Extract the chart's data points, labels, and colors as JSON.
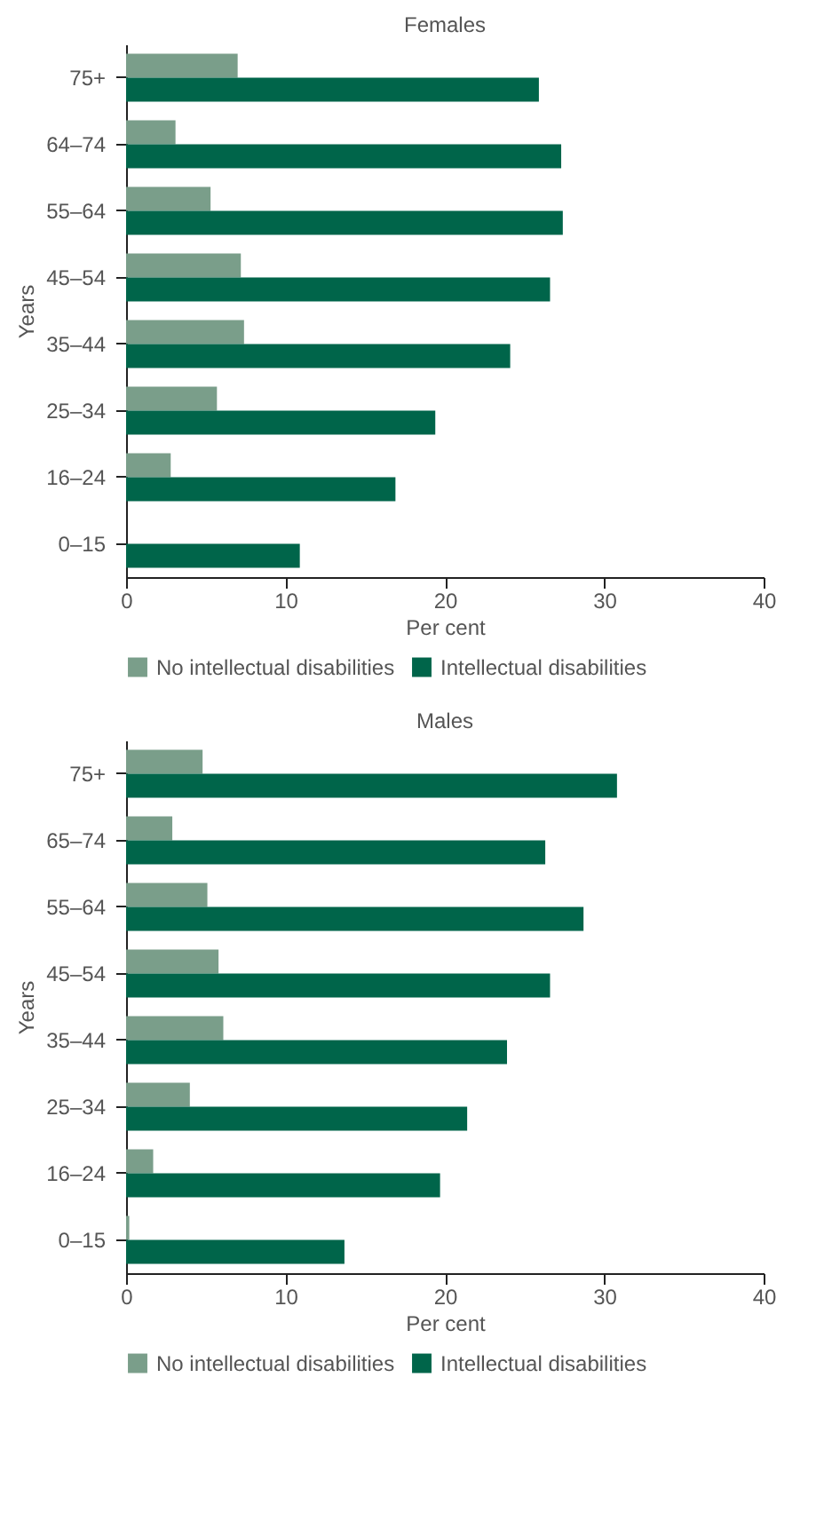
{
  "chart_data": [
    {
      "type": "bar",
      "orientation": "horizontal",
      "title": "Females",
      "xlabel": "Per cent",
      "ylabel": "Years",
      "categories": [
        "75+",
        "64–74",
        "55–64",
        "45–54",
        "35–44",
        "25–34",
        "16–24",
        "0–15"
      ],
      "series": [
        {
          "name": "No intellectual disabilities",
          "color": "#7a9e8a",
          "values": [
            7.0,
            3.1,
            5.3,
            7.2,
            7.4,
            5.7,
            2.8,
            0
          ]
        },
        {
          "name": "Intellectual disabilities",
          "color": "#00654a",
          "values": [
            25.9,
            27.3,
            27.4,
            26.6,
            24.1,
            19.4,
            16.9,
            10.9
          ]
        }
      ],
      "xlim": [
        0,
        40
      ],
      "xticks": [
        0,
        10,
        20,
        30,
        40
      ],
      "grid": false,
      "legend": "bottom"
    },
    {
      "type": "bar",
      "orientation": "horizontal",
      "title": "Males",
      "xlabel": "Per cent",
      "ylabel": "Years",
      "categories": [
        "75+",
        "65–74",
        "55–64",
        "45–54",
        "35–44",
        "25–34",
        "16–24",
        "0–15"
      ],
      "series": [
        {
          "name": "No intellectual disabilities",
          "color": "#7a9e8a",
          "values": [
            4.8,
            2.9,
            5.1,
            5.8,
            6.1,
            4.0,
            1.7,
            0.2
          ]
        },
        {
          "name": "Intellectual disabilities",
          "color": "#00654a",
          "values": [
            30.8,
            26.3,
            28.7,
            26.6,
            23.9,
            21.4,
            19.7,
            13.7
          ]
        }
      ],
      "xlim": [
        0,
        40
      ],
      "xticks": [
        0,
        10,
        20,
        30,
        40
      ],
      "grid": false,
      "legend": "bottom"
    }
  ]
}
